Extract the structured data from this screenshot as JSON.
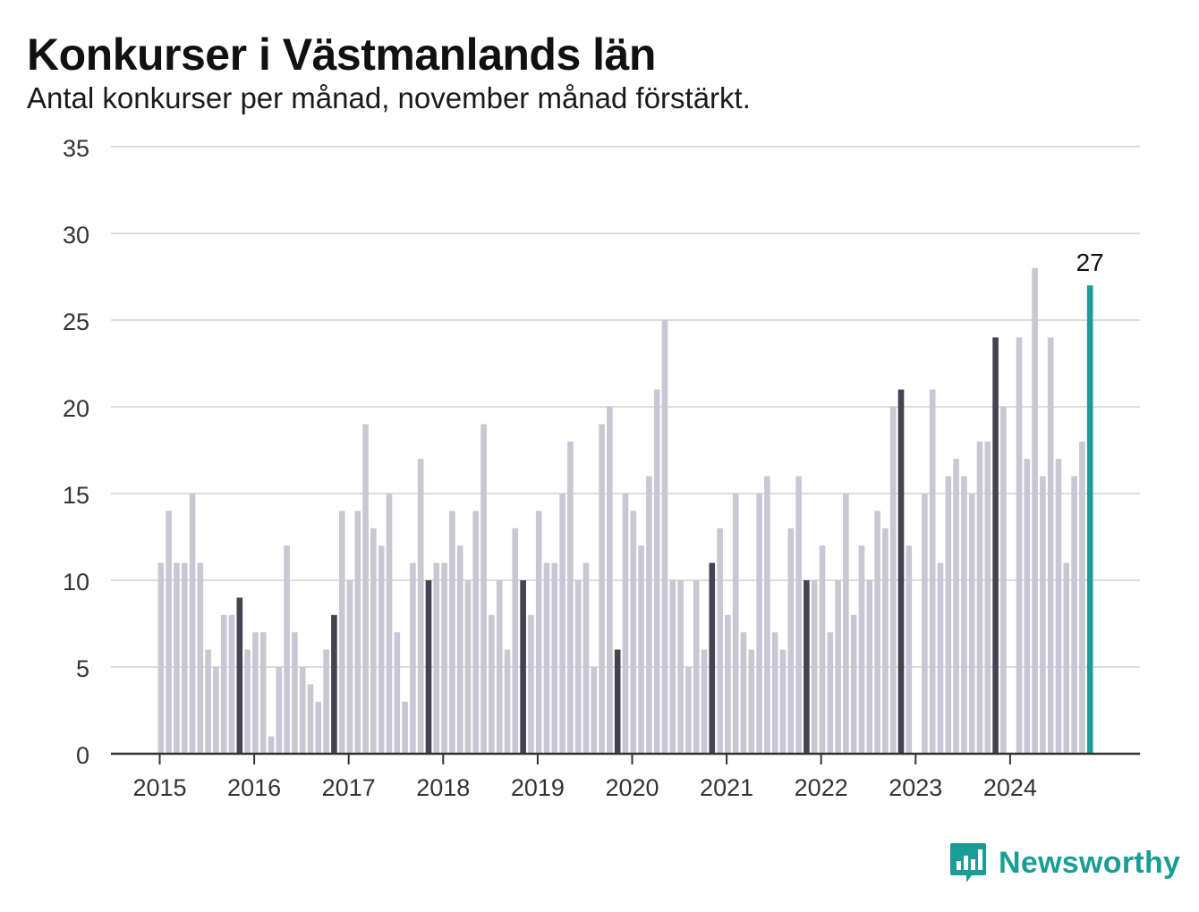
{
  "header": {
    "title": "Konkurser i Västmanlands län",
    "subtitle": "Antal konkurser per månad, november månad förstärkt."
  },
  "logo": {
    "text": "Newsworthy",
    "icon": "newsworthy-logo-icon",
    "color": "#199e95"
  },
  "colors": {
    "bar": "#c8c7d3",
    "highlight": "#44434f",
    "latest": "#199e95",
    "grid": "#dddddd",
    "axis": "#333333"
  },
  "chart_data": {
    "type": "bar",
    "title": "Konkurser i Västmanlands län",
    "subtitle": "Antal konkurser per månad, november månad förstärkt.",
    "xlabel": "",
    "ylabel": "",
    "ylim": [
      0,
      35
    ],
    "yticks": [
      0,
      5,
      10,
      15,
      20,
      25,
      30,
      35
    ],
    "grid": true,
    "start": "2015-01",
    "end": "2024-11",
    "year_labels": [
      "2015",
      "2016",
      "2017",
      "2018",
      "2019",
      "2020",
      "2021",
      "2022",
      "2023",
      "2024"
    ],
    "highlight_month": "november",
    "latest_label": "27",
    "series": [
      {
        "values": [
          11,
          14,
          11,
          11,
          15,
          11,
          6,
          5,
          8,
          8,
          9,
          6,
          7,
          7,
          1,
          5,
          12,
          7,
          5,
          4,
          3,
          6,
          8,
          14,
          10,
          14,
          19,
          13,
          12,
          15,
          7,
          3,
          11,
          17,
          10,
          11,
          11,
          14,
          12,
          10,
          14,
          19,
          8,
          10,
          6,
          13,
          10,
          8,
          14,
          11,
          11,
          15,
          18,
          10,
          11,
          5,
          19,
          20,
          6,
          15,
          14,
          12,
          16,
          21,
          25,
          10,
          10,
          5,
          10,
          6,
          11,
          13,
          8,
          15,
          7,
          6,
          15,
          16,
          7,
          6,
          13,
          16,
          10,
          10,
          12,
          7,
          10,
          15,
          8,
          12,
          10,
          14,
          13,
          20,
          21,
          12,
          0,
          15,
          21,
          11,
          16,
          17,
          16,
          15,
          18,
          18,
          24,
          20,
          0,
          24,
          17,
          28,
          16,
          24,
          17,
          11,
          16,
          18,
          27
        ]
      }
    ]
  }
}
